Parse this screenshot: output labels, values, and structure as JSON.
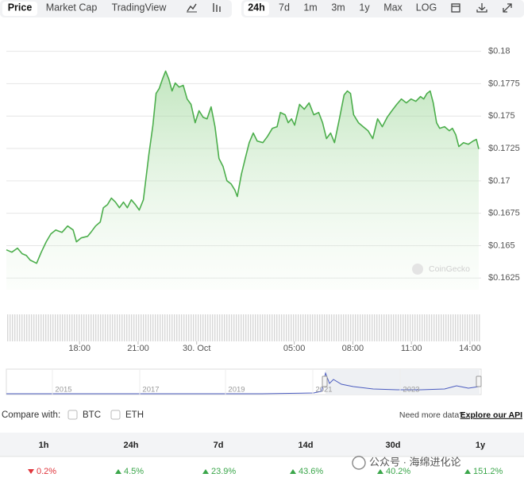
{
  "toolbar": {
    "tabs": [
      "Price",
      "Market Cap",
      "TradingView"
    ],
    "ranges": [
      "24h",
      "7d",
      "1m",
      "3m",
      "1y",
      "Max",
      "LOG"
    ]
  },
  "chart_data": {
    "type": "line",
    "watermark": "CoinGecko",
    "grid": true,
    "x": [
      14.25,
      14.53,
      14.82,
      15.06,
      15.27,
      15.47,
      15.8,
      16.04,
      16.29,
      16.53,
      16.78,
      17.1,
      17.39,
      17.67,
      17.84,
      18.08,
      18.41,
      18.61,
      18.82,
      19.06,
      19.22,
      19.43,
      19.63,
      19.84,
      20.04,
      20.25,
      20.45,
      20.65,
      20.86,
      21.06,
      21.27,
      21.39,
      21.55,
      21.76,
      21.92,
      22.08,
      22.25,
      22.41,
      22.57,
      22.74,
      22.9,
      23.1,
      23.31,
      23.51,
      23.71,
      23.92,
      24.12,
      24.33,
      24.53,
      24.74,
      24.94,
      25.14,
      25.35,
      25.55,
      25.76,
      25.96,
      26.08,
      26.29,
      26.49,
      26.69,
      26.9,
      27.1,
      27.39,
      27.63,
      27.88,
      28.12,
      28.29,
      28.53,
      28.69,
      28.86,
      29.02,
      29.27,
      29.51,
      29.76,
      30.0,
      30.25,
      30.45,
      30.65,
      30.86,
      31.06,
      31.31,
      31.55,
      31.72,
      31.88,
      32.04,
      32.29,
      32.53,
      32.78,
      33.02,
      33.27,
      33.51,
      33.76,
      34.0,
      34.25,
      34.49,
      34.74,
      34.98,
      35.23,
      35.47,
      35.63,
      35.8,
      35.96,
      36.12,
      36.29,
      36.45,
      36.7,
      36.94,
      37.1,
      37.27,
      37.43,
      37.67,
      37.92,
      38.16,
      38.33,
      38.45
    ],
    "series": [
      {
        "color": "#4cae4c",
        "values": [
          0.16468,
          0.1645,
          0.16481,
          0.16438,
          0.16425,
          0.16389,
          0.16364,
          0.1645,
          0.1653,
          0.16591,
          0.16621,
          0.16603,
          0.16652,
          0.16621,
          0.1653,
          0.1656,
          0.16572,
          0.16609,
          0.16652,
          0.16683,
          0.16793,
          0.16817,
          0.16867,
          0.16836,
          0.16793,
          0.16836,
          0.16793,
          0.16854,
          0.16817,
          0.16775,
          0.16854,
          0.17001,
          0.17203,
          0.1743,
          0.17675,
          0.17712,
          0.17786,
          0.17847,
          0.17786,
          0.17694,
          0.17755,
          0.17724,
          0.17737,
          0.17632,
          0.1759,
          0.17449,
          0.17541,
          0.17491,
          0.17479,
          0.17571,
          0.17418,
          0.17173,
          0.17112,
          0.17001,
          0.16977,
          0.16928,
          0.16879,
          0.1705,
          0.17173,
          0.17295,
          0.17369,
          0.17308,
          0.17295,
          0.17344,
          0.17406,
          0.17418,
          0.17528,
          0.1751,
          0.17449,
          0.17479,
          0.1743,
          0.1759,
          0.17553,
          0.17602,
          0.1751,
          0.17528,
          0.17449,
          0.17326,
          0.17369,
          0.17295,
          0.17479,
          0.17663,
          0.17694,
          0.17675,
          0.1751,
          0.17449,
          0.17418,
          0.17387,
          0.17326,
          0.17479,
          0.17418,
          0.17491,
          0.17541,
          0.1759,
          0.17632,
          0.17602,
          0.17632,
          0.17614,
          0.17651,
          0.17632,
          0.17675,
          0.17694,
          0.17602,
          0.17449,
          0.17406,
          0.17418,
          0.17387,
          0.17406,
          0.17357,
          0.17265,
          0.17295,
          0.17283,
          0.17308,
          0.1732,
          0.17246
        ]
      }
    ],
    "xlim": [
      14.25,
      38.45
    ],
    "ylim": [
      0.1616,
      0.1812
    ],
    "xticks": [
      {
        "value": 18,
        "label": "18:00"
      },
      {
        "value": 21,
        "label": "21:00"
      },
      {
        "value": 24,
        "label": "30. Oct"
      },
      {
        "value": 29,
        "label": "05:00"
      },
      {
        "value": 32,
        "label": "08:00"
      },
      {
        "value": 35,
        "label": "11:00"
      },
      {
        "value": 38,
        "label": "14:00"
      }
    ],
    "yticks": [
      {
        "value": 0.1625,
        "label": "$0.1625"
      },
      {
        "value": 0.165,
        "label": "$0.165"
      },
      {
        "value": 0.1675,
        "label": "$0.1675"
      },
      {
        "value": 0.17,
        "label": "$0.17"
      },
      {
        "value": 0.1725,
        "label": "$0.1725"
      },
      {
        "value": 0.175,
        "label": "$0.175"
      },
      {
        "value": 0.1775,
        "label": "$0.1775"
      },
      {
        "value": 0.18,
        "label": "$0.18"
      }
    ]
  },
  "navigator": {
    "labels": [
      "2015",
      "2017",
      "2019",
      "2021",
      "2023"
    ]
  },
  "compare": {
    "label": "Compare with:",
    "options": [
      "BTC",
      "ETH"
    ],
    "api_prompt": "Need more data?",
    "api_link": "Explore our API"
  },
  "table": {
    "headers": [
      "1h",
      "24h",
      "7d",
      "14d",
      "30d",
      "1y"
    ],
    "changes": [
      {
        "text": "0.2%",
        "direction": "down"
      },
      {
        "text": "4.5%",
        "direction": "up"
      },
      {
        "text": "23.9%",
        "direction": "up"
      },
      {
        "text": "43.6%",
        "direction": "up"
      },
      {
        "text": "40.2%",
        "direction": "up"
      },
      {
        "text": "151.2%",
        "direction": "up"
      }
    ]
  },
  "watermark": "公众号 · 海绵进化论"
}
